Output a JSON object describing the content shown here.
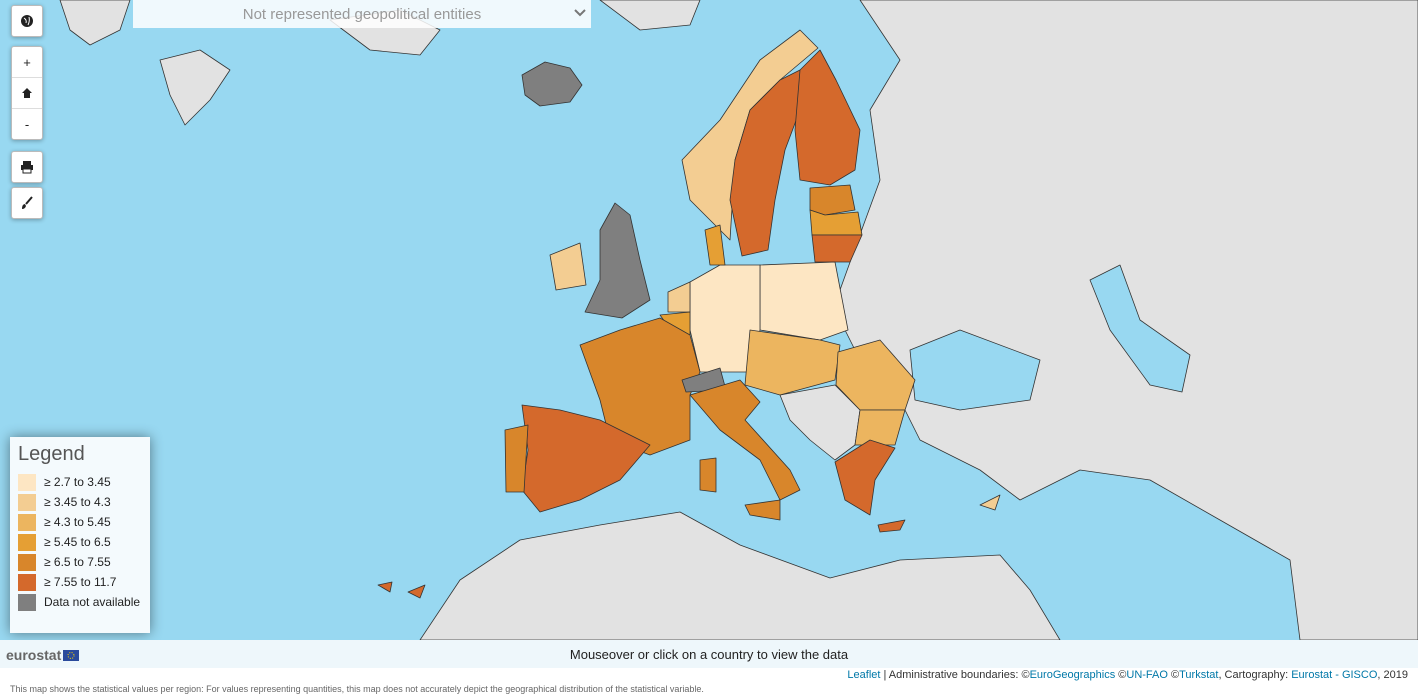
{
  "dropdown": {
    "label": "Not represented geopolitical entities"
  },
  "zoom_controls": {
    "zoom_in": "+",
    "zoom_out": "-"
  },
  "legend": {
    "title": "Legend",
    "items": [
      {
        "label": "≥ 2.7 to 3.45",
        "color": "#fde6c3"
      },
      {
        "label": "≥ 3.45 to 4.3",
        "color": "#f3cd92"
      },
      {
        "label": "≥ 4.3 to 5.45",
        "color": "#ecb55f"
      },
      {
        "label": "≥ 5.45 to 6.5",
        "color": "#e59f34"
      },
      {
        "label": "≥ 6.5 to 7.55",
        "color": "#d8862b"
      },
      {
        "label": "≥ 7.55 to 11.7",
        "color": "#d4692c"
      },
      {
        "label": "Data not available",
        "color": "#7f7f7f"
      }
    ]
  },
  "brand": "eurostat",
  "status_bar": "Mouseover or click on a country to view the data",
  "attribution": [
    "Leaflet",
    " | Administrative boundaries: ©",
    "EuroGeographics",
    " ©",
    "UN-FAO",
    " ©",
    "Turkstat",
    ", Cartography: ",
    "Eurostat - GISCO",
    ", 2019"
  ],
  "footer": "This map shows the statistical values per region: For values representing quantities, this map does not accurately depict the geographical distribution of the statistical variable."
}
